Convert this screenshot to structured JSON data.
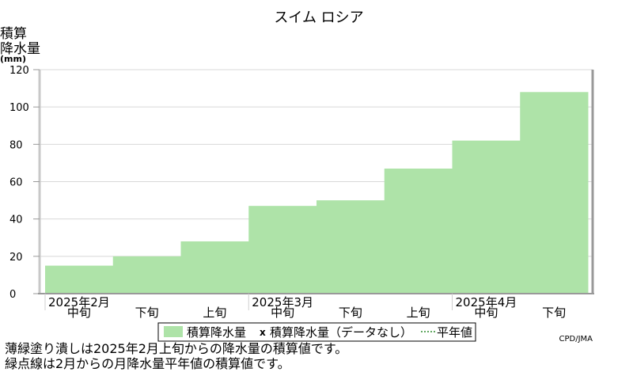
{
  "chart_data": {
    "type": "area",
    "title": "スイム ロシア",
    "ylabel_lines": [
      "積算",
      "降水量",
      "(mm)"
    ],
    "ylim": [
      0,
      120
    ],
    "yticks": [
      0,
      20,
      40,
      60,
      80,
      100,
      120
    ],
    "grid": true,
    "periods": [
      {
        "month": "2025年2月",
        "dekad": "中旬"
      },
      {
        "month": "",
        "dekad": "下旬"
      },
      {
        "month": "",
        "dekad": "上旬"
      },
      {
        "month": "2025年3月",
        "dekad": "中旬"
      },
      {
        "month": "",
        "dekad": "下旬"
      },
      {
        "month": "",
        "dekad": "上旬"
      },
      {
        "month": "2025年4月",
        "dekad": "中旬"
      },
      {
        "month": "",
        "dekad": "下旬"
      }
    ],
    "series": [
      {
        "name": "積算降水量",
        "values": [
          15,
          20,
          28,
          47,
          50,
          67,
          82,
          108
        ],
        "color": "#aee3a8"
      }
    ],
    "legend": {
      "placement": "bottom",
      "items": [
        "積算降水量",
        "積算降水量（データなし）",
        "平年値"
      ],
      "no_data_marker": "x"
    },
    "credit": "CPD/JMA"
  },
  "notes": [
    "薄緑塗り潰しは2025年2月上旬からの降水量の積算値です。",
    "緑点線は2月からの月降水量平年値の積算値です。"
  ]
}
